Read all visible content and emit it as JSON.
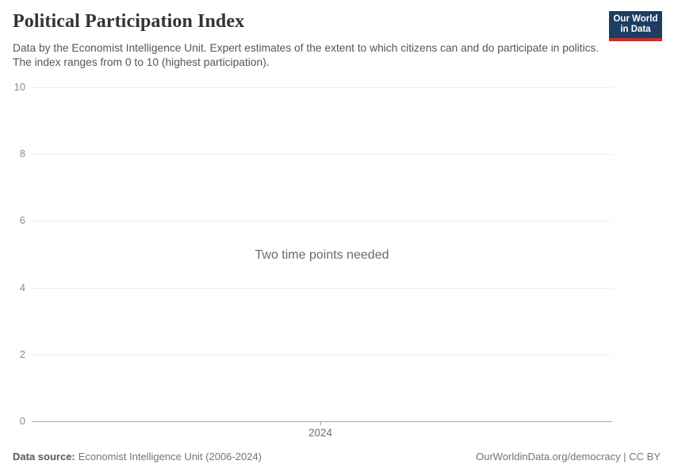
{
  "header": {
    "title": "Political Participation Index",
    "subtitle": "Data by the Economist Intelligence Unit. Expert estimates of the extent to which citizens can and do participate in politics. The index ranges from 0 to 10 (highest participation).",
    "logo": {
      "line1": "Our World",
      "line2": "in Data",
      "bg_color": "#1d3d63",
      "accent_color": "#c9302c"
    }
  },
  "chart_data": {
    "type": "line",
    "title": "Political Participation Index",
    "note": "Two time points needed",
    "series": [],
    "categories": [],
    "xlabel": "",
    "ylabel": "",
    "ylim": [
      0,
      10
    ],
    "y_ticks": [
      0,
      2,
      4,
      6,
      8,
      10
    ],
    "x_ticks": [
      "2024"
    ],
    "grid": "horizontal-dashed",
    "grid_color": "#e2e2e2",
    "axis_color": "#a5a5a5",
    "y_tick_label_color": "#8c8c8c",
    "x_tick_label_color": "#6f6f6f",
    "legend_position": "none"
  },
  "footer": {
    "data_source_label": "Data source:",
    "data_source_value": "Economist Intelligence Unit (2006-2024)",
    "link": "OurWorldinData.org/democracy | CC BY"
  }
}
